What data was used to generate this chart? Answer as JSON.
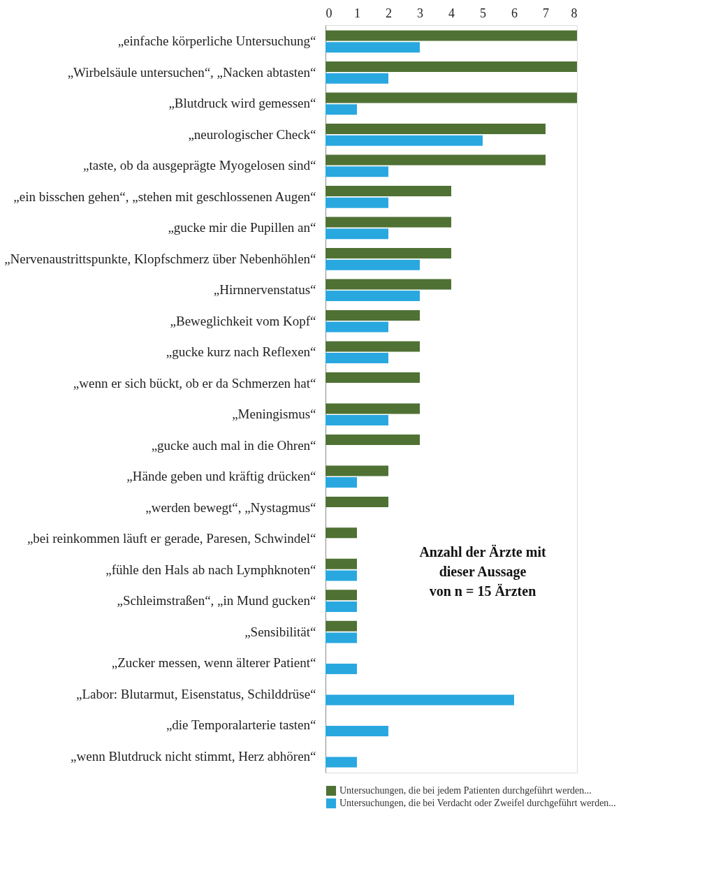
{
  "chart_data": {
    "type": "bar",
    "orientation": "horizontal",
    "categories": [
      "„einfache körperliche Untersuchung“",
      "„Wirbelsäule untersuchen“, „Nacken abtasten“",
      "„Blutdruck wird gemessen“",
      "„neurologischer Check“",
      "„taste, ob da ausgeprägte Myogelosen sind“",
      "„ein bisschen gehen“, „stehen mit geschlossenen Augen“",
      "„gucke mir die Pupillen an“",
      "„Nervenaustrittspunkte, Klopfschmerz über Nebenhöhlen“",
      "„Hirnnervenstatus“",
      "„Beweglichkeit vom Kopf“",
      "„gucke kurz nach Reflexen“",
      "„wenn er sich bückt, ob er da Schmerzen hat“",
      "„Meningismus“",
      "„gucke auch mal in die Ohren“",
      "„Hände geben und kräftig drücken“",
      "„werden bewegt“, „Nystagmus“",
      "„bei reinkommen läuft er gerade, Paresen, Schwindel“",
      "„fühle den Hals ab nach Lymphknoten“",
      "„Schleimstraßen“, „in Mund gucken“",
      "„Sensibilität“",
      "„Zucker messen, wenn älterer Patient“",
      "„Labor: Blutarmut, Eisenstatus, Schilddrüse“",
      "„die Temporalarterie tasten“",
      "„wenn Blutdruck nicht stimmt, Herz abhören“"
    ],
    "series": [
      {
        "name": "Untersuchungen, die bei jedem Patienten durchgeführt werden...",
        "color": "#4f7134",
        "values": [
          8,
          8,
          8,
          7,
          7,
          4,
          4,
          4,
          4,
          3,
          3,
          3,
          3,
          3,
          2,
          2,
          1,
          1,
          1,
          1,
          null,
          null,
          null,
          null
        ]
      },
      {
        "name": "Untersuchungen, die bei Verdacht oder Zweifel durchgeführt werden...",
        "color": "#29a8e0",
        "values": [
          3,
          2,
          1,
          5,
          2,
          2,
          2,
          3,
          3,
          2,
          2,
          null,
          2,
          null,
          1,
          null,
          null,
          1,
          1,
          1,
          1,
          6,
          2,
          1
        ]
      }
    ],
    "xlim": [
      0,
      8
    ],
    "xticks": [
      0,
      1,
      2,
      3,
      4,
      5,
      6,
      7,
      8
    ],
    "annotations": [
      "Anzahl der Ärzte mit\ndieser Aussage\nvon n = 15 Ärzten"
    ],
    "legend": "bottom",
    "grid": false
  }
}
